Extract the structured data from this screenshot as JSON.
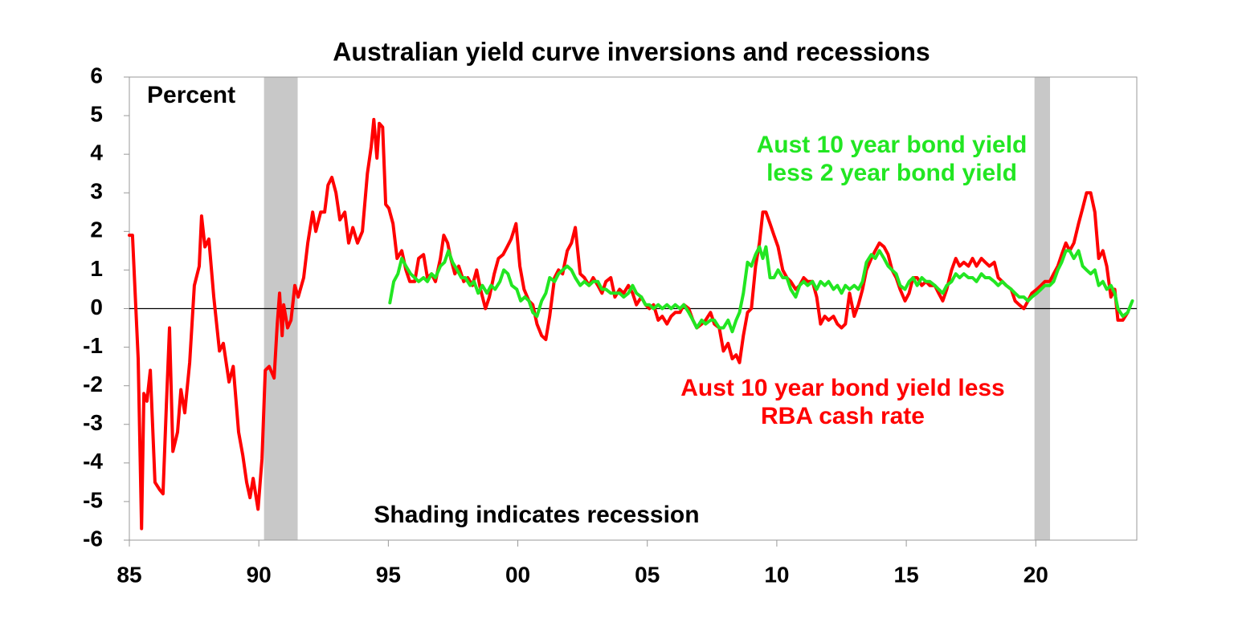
{
  "chart_data": {
    "type": "line",
    "title": "Australian yield curve inversions and recessions",
    "y_axis_label": "Percent",
    "note": "Shading indicates recession",
    "xlim": [
      1985,
      2023.9
    ],
    "ylim": [
      -6,
      6
    ],
    "xticks": [
      {
        "value": 1985,
        "label": "85"
      },
      {
        "value": 1990,
        "label": "90"
      },
      {
        "value": 1995,
        "label": "95"
      },
      {
        "value": 2000,
        "label": "00"
      },
      {
        "value": 2005,
        "label": "05"
      },
      {
        "value": 2010,
        "label": "10"
      },
      {
        "value": 2015,
        "label": "15"
      },
      {
        "value": 2020,
        "label": "20"
      }
    ],
    "yticks": [
      -6,
      -5,
      -4,
      -3,
      -2,
      -1,
      0,
      1,
      2,
      3,
      4,
      5,
      6
    ],
    "recessions": [
      {
        "start": 1990.2,
        "end": 1991.5
      },
      {
        "start": 2019.95,
        "end": 2020.55
      }
    ],
    "recession_color": "#c8c8c8",
    "series": [
      {
        "name": "Aust 10 year bond yield less RBA cash rate",
        "color": "#ff0000",
        "x": [
          1985.0,
          1985.12,
          1985.34,
          1985.47,
          1985.56,
          1985.68,
          1985.81,
          1985.99,
          1986.18,
          1986.3,
          1986.43,
          1986.55,
          1986.68,
          1986.86,
          1986.99,
          1987.14,
          1987.33,
          1987.51,
          1987.7,
          1987.79,
          1987.92,
          1988.07,
          1988.26,
          1988.48,
          1988.63,
          1988.85,
          1989.01,
          1989.22,
          1989.38,
          1989.53,
          1989.66,
          1989.78,
          1989.97,
          1990.12,
          1990.25,
          1990.4,
          1990.59,
          1990.71,
          1990.8,
          1990.9,
          1990.96,
          1991.11,
          1991.24,
          1991.39,
          1991.52,
          1991.73,
          1991.89,
          1992.08,
          1992.2,
          1992.39,
          1992.54,
          1992.67,
          1992.82,
          1992.98,
          1993.13,
          1993.32,
          1993.47,
          1993.63,
          1993.81,
          1994.0,
          1994.19,
          1994.34,
          1994.44,
          1994.56,
          1994.65,
          1994.78,
          1994.9,
          1995.02,
          1995.18,
          1995.34,
          1995.52,
          1995.68,
          1995.83,
          1996.02,
          1996.17,
          1996.36,
          1996.51,
          1996.67,
          1996.82,
          1997.01,
          1997.14,
          1997.29,
          1997.41,
          1997.57,
          1997.72,
          1997.91,
          1998.07,
          1998.25,
          1998.41,
          1998.56,
          1998.75,
          1998.9,
          1999.09,
          1999.25,
          1999.43,
          1999.59,
          1999.74,
          1999.93,
          2000.08,
          2000.24,
          2000.43,
          2000.58,
          2000.74,
          2000.92,
          2001.08,
          2001.23,
          2001.42,
          2001.57,
          2001.73,
          2001.91,
          2002.07,
          2002.22,
          2002.41,
          2002.57,
          2002.75,
          2002.91,
          2003.09,
          2003.25,
          2003.4,
          2003.59,
          2003.75,
          2003.93,
          2004.09,
          2004.27,
          2004.43,
          2004.58,
          2004.77,
          2004.93,
          2005.08,
          2005.24,
          2005.42,
          2005.58,
          2005.76,
          2005.92,
          2006.08,
          2006.26,
          2006.41,
          2006.6,
          2006.76,
          2006.91,
          2007.1,
          2007.25,
          2007.44,
          2007.59,
          2007.78,
          2007.94,
          2008.12,
          2008.28,
          2008.43,
          2008.56,
          2008.71,
          2008.87,
          2009.02,
          2009.18,
          2009.33,
          2009.46,
          2009.58,
          2009.74,
          2009.89,
          2010.05,
          2010.23,
          2010.39,
          2010.54,
          2010.73,
          2010.88,
          2011.04,
          2011.19,
          2011.38,
          2011.54,
          2011.69,
          2011.85,
          2012.0,
          2012.19,
          2012.34,
          2012.5,
          2012.65,
          2012.81,
          2012.99,
          2013.15,
          2013.31,
          2013.46,
          2013.65,
          2013.8,
          2013.96,
          2014.14,
          2014.3,
          2014.45,
          2014.61,
          2014.76,
          2014.95,
          2015.11,
          2015.26,
          2015.42,
          2015.6,
          2015.76,
          2015.91,
          2016.1,
          2016.25,
          2016.41,
          2016.56,
          2016.75,
          2016.91,
          2017.06,
          2017.22,
          2017.4,
          2017.56,
          2017.71,
          2017.9,
          2018.05,
          2018.21,
          2018.4,
          2018.55,
          2018.71,
          2018.86,
          2019.05,
          2019.2,
          2019.36,
          2019.54,
          2019.7,
          2019.85,
          2020.04,
          2020.2,
          2020.35,
          2020.54,
          2020.69,
          2020.85,
          2021.0,
          2021.16,
          2021.31,
          2021.47,
          2021.65,
          2021.81,
          2021.96,
          2022.12,
          2022.28,
          2022.43,
          2022.59,
          2022.74,
          2022.9,
          2023.05,
          2023.17,
          2023.36,
          2023.55
        ],
        "values": [
          1.9,
          1.9,
          -1.3,
          -5.7,
          -2.2,
          -2.4,
          -1.6,
          -4.5,
          -4.7,
          -4.8,
          -2.5,
          -0.5,
          -3.7,
          -3.2,
          -2.1,
          -2.7,
          -1.4,
          0.6,
          1.1,
          2.4,
          1.6,
          1.8,
          0.3,
          -1.1,
          -0.9,
          -1.9,
          -1.5,
          -3.2,
          -3.8,
          -4.5,
          -4.9,
          -4.4,
          -5.2,
          -3.9,
          -1.6,
          -1.5,
          -1.8,
          -0.4,
          0.4,
          -0.7,
          0.1,
          -0.5,
          -0.3,
          0.6,
          0.3,
          0.8,
          1.7,
          2.5,
          2.0,
          2.5,
          2.5,
          3.2,
          3.4,
          3.0,
          2.3,
          2.5,
          1.7,
          2.1,
          1.7,
          2.0,
          3.5,
          4.2,
          4.9,
          3.9,
          4.8,
          4.7,
          2.7,
          2.6,
          2.2,
          1.3,
          1.5,
          1.0,
          0.7,
          0.7,
          1.3,
          1.4,
          0.8,
          0.9,
          0.7,
          1.3,
          1.9,
          1.7,
          1.3,
          0.9,
          1.1,
          0.7,
          0.8,
          0.6,
          1.0,
          0.5,
          0.0,
          0.3,
          0.9,
          1.3,
          1.4,
          1.6,
          1.8,
          2.2,
          1.1,
          0.5,
          0.2,
          0.1,
          -0.4,
          -0.7,
          -0.8,
          -0.2,
          0.8,
          1.0,
          0.9,
          1.5,
          1.7,
          2.1,
          0.9,
          0.8,
          0.6,
          0.8,
          0.6,
          0.4,
          0.7,
          0.8,
          0.3,
          0.5,
          0.4,
          0.6,
          0.4,
          0.1,
          0.3,
          0.1,
          0.0,
          0.1,
          -0.3,
          -0.2,
          -0.4,
          -0.2,
          -0.1,
          -0.1,
          0.1,
          0.0,
          -0.3,
          -0.5,
          -0.4,
          -0.3,
          -0.1,
          -0.4,
          -0.5,
          -1.1,
          -0.9,
          -1.3,
          -1.2,
          -1.4,
          -0.7,
          -0.1,
          0.0,
          1.1,
          1.7,
          2.5,
          2.5,
          2.2,
          1.9,
          1.6,
          1.0,
          0.8,
          0.7,
          0.5,
          0.6,
          0.8,
          0.7,
          0.7,
          0.3,
          -0.4,
          -0.2,
          -0.3,
          -0.2,
          -0.4,
          -0.5,
          -0.4,
          0.4,
          -0.2,
          0.1,
          0.5,
          1.0,
          1.3,
          1.5,
          1.7,
          1.6,
          1.4,
          1.0,
          0.8,
          0.5,
          0.2,
          0.4,
          0.8,
          0.8,
          0.6,
          0.7,
          0.6,
          0.6,
          0.4,
          0.2,
          0.5,
          1.0,
          1.3,
          1.1,
          1.2,
          1.1,
          1.3,
          1.1,
          1.3,
          1.2,
          1.1,
          1.2,
          0.8,
          0.7,
          0.6,
          0.5,
          0.2,
          0.1,
          0.0,
          0.2,
          0.4,
          0.5,
          0.6,
          0.7,
          0.7,
          0.9,
          1.1,
          1.4,
          1.7,
          1.5,
          1.7,
          2.2,
          2.6,
          3.0,
          3.0,
          2.5,
          1.3,
          1.5,
          1.1,
          0.3,
          0.5,
          -0.3,
          -0.3,
          -0.1
        ]
      },
      {
        "name": "Aust 10 year bond yield less 2 year bond yield",
        "color": "#22e622",
        "x": [
          1995.06,
          1995.21,
          1995.37,
          1995.52,
          1995.68,
          1995.86,
          1996.02,
          1996.17,
          1996.36,
          1996.51,
          1996.67,
          1996.82,
          1997.01,
          1997.17,
          1997.32,
          1997.48,
          1997.66,
          1997.82,
          1997.97,
          1998.16,
          1998.31,
          1998.47,
          1998.63,
          1998.81,
          1998.97,
          1999.12,
          1999.31,
          1999.46,
          1999.62,
          1999.77,
          1999.96,
          2000.11,
          2000.27,
          2000.43,
          2000.58,
          2000.74,
          2000.92,
          2001.08,
          2001.23,
          2001.42,
          2001.57,
          2001.73,
          2001.91,
          2002.07,
          2002.22,
          2002.41,
          2002.57,
          2002.75,
          2002.91,
          2003.09,
          2003.25,
          2003.4,
          2003.59,
          2003.75,
          2003.93,
          2004.09,
          2004.27,
          2004.43,
          2004.58,
          2004.77,
          2004.93,
          2005.08,
          2005.24,
          2005.42,
          2005.58,
          2005.76,
          2005.92,
          2006.08,
          2006.26,
          2006.41,
          2006.6,
          2006.76,
          2006.91,
          2007.1,
          2007.25,
          2007.44,
          2007.59,
          2007.78,
          2007.94,
          2008.12,
          2008.28,
          2008.43,
          2008.56,
          2008.71,
          2008.87,
          2009.02,
          2009.18,
          2009.33,
          2009.46,
          2009.58,
          2009.74,
          2009.89,
          2010.05,
          2010.23,
          2010.39,
          2010.54,
          2010.73,
          2010.88,
          2011.04,
          2011.19,
          2011.38,
          2011.54,
          2011.69,
          2011.85,
          2012.0,
          2012.19,
          2012.34,
          2012.5,
          2012.65,
          2012.81,
          2012.99,
          2013.15,
          2013.31,
          2013.46,
          2013.65,
          2013.8,
          2013.96,
          2014.14,
          2014.3,
          2014.45,
          2014.61,
          2014.76,
          2014.95,
          2015.11,
          2015.26,
          2015.42,
          2015.6,
          2015.76,
          2015.91,
          2016.1,
          2016.25,
          2016.41,
          2016.56,
          2016.75,
          2016.91,
          2017.06,
          2017.22,
          2017.4,
          2017.56,
          2017.71,
          2017.9,
          2018.05,
          2018.21,
          2018.4,
          2018.55,
          2018.71,
          2018.86,
          2019.05,
          2019.2,
          2019.36,
          2019.54,
          2019.7,
          2019.85,
          2020.04,
          2020.2,
          2020.35,
          2020.54,
          2020.69,
          2020.85,
          2021.0,
          2021.16,
          2021.31,
          2021.47,
          2021.65,
          2021.81,
          2021.96,
          2022.12,
          2022.28,
          2022.43,
          2022.59,
          2022.74,
          2022.9,
          2023.05,
          2023.17,
          2023.36,
          2023.55,
          2023.73
        ],
        "values": [
          0.15,
          0.7,
          0.9,
          1.3,
          1.1,
          0.9,
          0.8,
          0.7,
          0.8,
          0.7,
          0.9,
          0.8,
          1.1,
          1.2,
          1.5,
          1.2,
          1.0,
          0.8,
          0.8,
          0.6,
          0.7,
          0.4,
          0.6,
          0.4,
          0.6,
          0.5,
          0.7,
          1.0,
          0.9,
          0.6,
          0.5,
          0.2,
          0.3,
          0.2,
          -0.1,
          -0.2,
          0.2,
          0.4,
          0.8,
          0.7,
          0.9,
          1.0,
          1.1,
          1.0,
          0.8,
          0.6,
          0.7,
          0.6,
          0.7,
          0.7,
          0.5,
          0.5,
          0.4,
          0.4,
          0.4,
          0.3,
          0.4,
          0.6,
          0.4,
          0.3,
          0.1,
          0.1,
          0.0,
          0.1,
          0.0,
          0.1,
          0.0,
          0.1,
          0.0,
          0.1,
          -0.1,
          -0.3,
          -0.5,
          -0.3,
          -0.4,
          -0.3,
          -0.3,
          -0.5,
          -0.5,
          -0.3,
          -0.6,
          -0.3,
          -0.1,
          0.4,
          1.2,
          1.1,
          1.4,
          1.6,
          1.3,
          1.6,
          0.8,
          0.8,
          1.0,
          0.8,
          0.8,
          0.5,
          0.3,
          0.6,
          0.7,
          0.6,
          0.7,
          0.5,
          0.7,
          0.6,
          0.7,
          0.5,
          0.6,
          0.4,
          0.6,
          0.5,
          0.6,
          0.5,
          0.7,
          1.2,
          1.4,
          1.3,
          1.5,
          1.3,
          1.1,
          1.0,
          0.9,
          0.6,
          0.5,
          0.7,
          0.8,
          0.6,
          0.8,
          0.7,
          0.7,
          0.6,
          0.5,
          0.4,
          0.6,
          0.7,
          0.9,
          0.8,
          0.9,
          0.8,
          0.8,
          0.7,
          0.9,
          0.8,
          0.8,
          0.7,
          0.6,
          0.7,
          0.6,
          0.5,
          0.4,
          0.3,
          0.3,
          0.2,
          0.3,
          0.4,
          0.5,
          0.6,
          0.6,
          0.7,
          1.0,
          1.2,
          1.5,
          1.5,
          1.3,
          1.5,
          1.1,
          1.0,
          0.9,
          1.0,
          0.6,
          0.7,
          0.5,
          0.6,
          0.4,
          0.0,
          -0.2,
          -0.1,
          0.2
        ]
      }
    ]
  }
}
